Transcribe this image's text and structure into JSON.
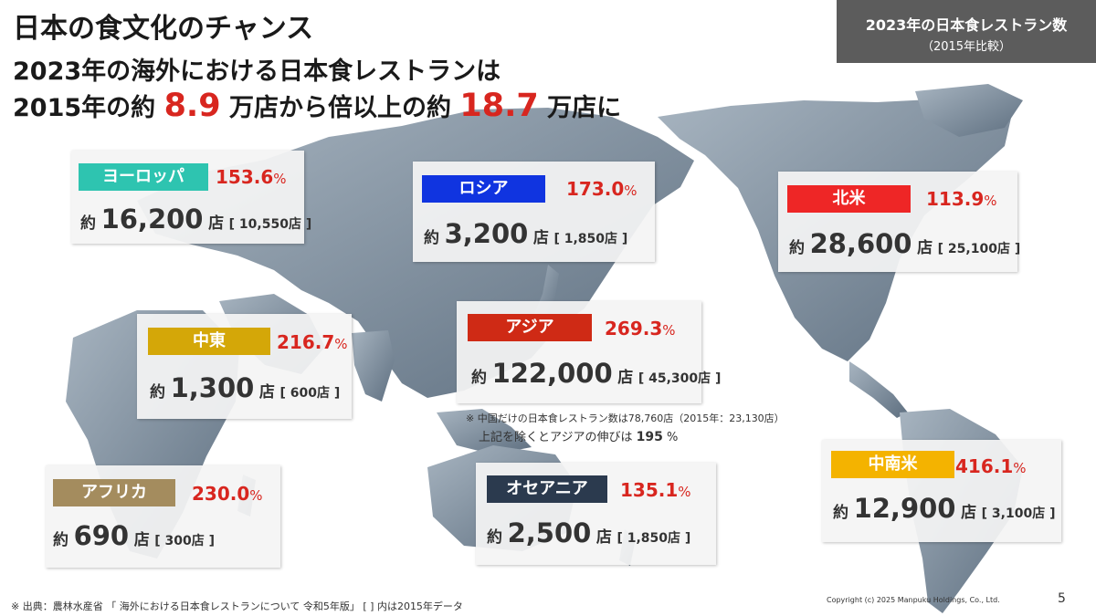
{
  "title": "日本の食文化のチャンス",
  "headline_line1": "2023年の海外における日本食レストランは",
  "headline_line2": {
    "pre": "2015年の約",
    "value_2015": "8.9",
    "mid": "万店から倍以上の約",
    "value_2023": "18.7",
    "post": "万店に"
  },
  "badge": {
    "line1": "2023年の日本食レストラン数",
    "line2": "（2015年比較）"
  },
  "regions": [
    {
      "id": "europe",
      "name": "ヨーロッパ",
      "color": "#2ec4b0",
      "pct": "153.6",
      "pct_sym": "%",
      "prefix": "約",
      "count": "16,200",
      "unit": "店",
      "count_2015": "[ 10,550店 ]"
    },
    {
      "id": "russia",
      "name": "ロシア",
      "color": "#1034e0",
      "pct": "173.0",
      "pct_sym": "%",
      "prefix": "約",
      "count": "3,200",
      "unit": "店",
      "count_2015": "[ 1,850店 ]"
    },
    {
      "id": "north-america",
      "name": "北米",
      "color": "#ee2626",
      "pct": "113.9",
      "pct_sym": "%",
      "prefix": "約",
      "count": "28,600",
      "unit": "店",
      "count_2015": "[ 25,100店 ]"
    },
    {
      "id": "middle-east",
      "name": "中東",
      "color": "#d4a708",
      "pct": "216.7",
      "pct_sym": "%",
      "prefix": "約",
      "count": "1,300",
      "unit": "店",
      "count_2015": "[ 600店 ]"
    },
    {
      "id": "asia",
      "name": "アジア",
      "color": "#cf2a15",
      "pct": "269.3",
      "pct_sym": "%",
      "prefix": "約",
      "count": "122,000",
      "unit": "店",
      "count_2015": "[ 45,300店 ]"
    },
    {
      "id": "africa",
      "name": "アフリカ",
      "color": "#a48c5e",
      "pct": "230.0",
      "pct_sym": "%",
      "prefix": "約",
      "count": "690",
      "unit": "店",
      "count_2015": "[ 300店 ]"
    },
    {
      "id": "oceania",
      "name": "オセアニア",
      "color": "#2b3a4e",
      "pct": "135.1",
      "pct_sym": "%",
      "prefix": "約",
      "count": "2,500",
      "unit": "店",
      "count_2015": "[ 1,850店 ]"
    },
    {
      "id": "latin-america",
      "name": "中南米",
      "color": "#f4b300",
      "pct": "416.1",
      "pct_sym": "%",
      "prefix": "約",
      "count": "12,900",
      "unit": "店",
      "count_2015": "[ 3,100店 ]"
    }
  ],
  "asia_note": {
    "line1": "※ 中国だけの日本食レストラン数は78,760店（2015年：23,130店）",
    "line2_pre": "上記を除くとアジアの伸びは",
    "line2_value": "195",
    "line2_post": "%"
  },
  "footer_source": "※ 出典：農林水産省 「 海外における日本食レストランについて 令和5年版」 [ ] 内は2015年データ",
  "copyright": "Copyright (c) 2025 Manpuku Holdings, Co., Ltd.",
  "page_number": "5",
  "colors": {
    "accent_red": "#d8261f",
    "map_gray": "#7d8d9c",
    "badge_bg": "#5c5c5c"
  }
}
